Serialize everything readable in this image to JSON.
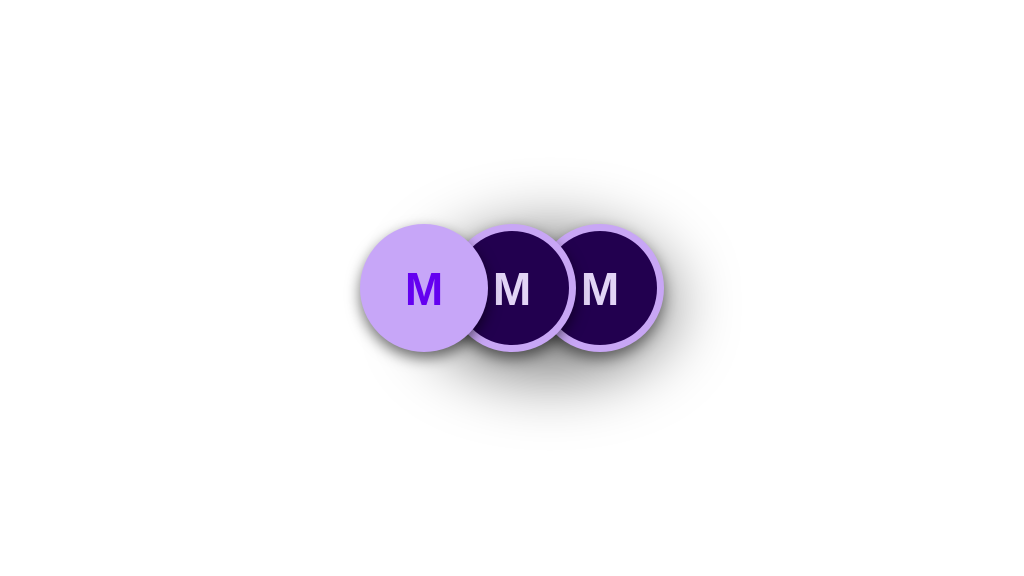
{
  "avatars": [
    {
      "initial": "M",
      "background": "#c7a6f8",
      "text_color": "#6400f0",
      "ring_color": ""
    },
    {
      "initial": "M",
      "background": "#22004f",
      "text_color": "#e2d4f6",
      "ring_color": "#c8a6f5"
    },
    {
      "initial": "M",
      "background": "#22004f",
      "text_color": "#e2d4f6",
      "ring_color": "#c8a6f5"
    }
  ]
}
